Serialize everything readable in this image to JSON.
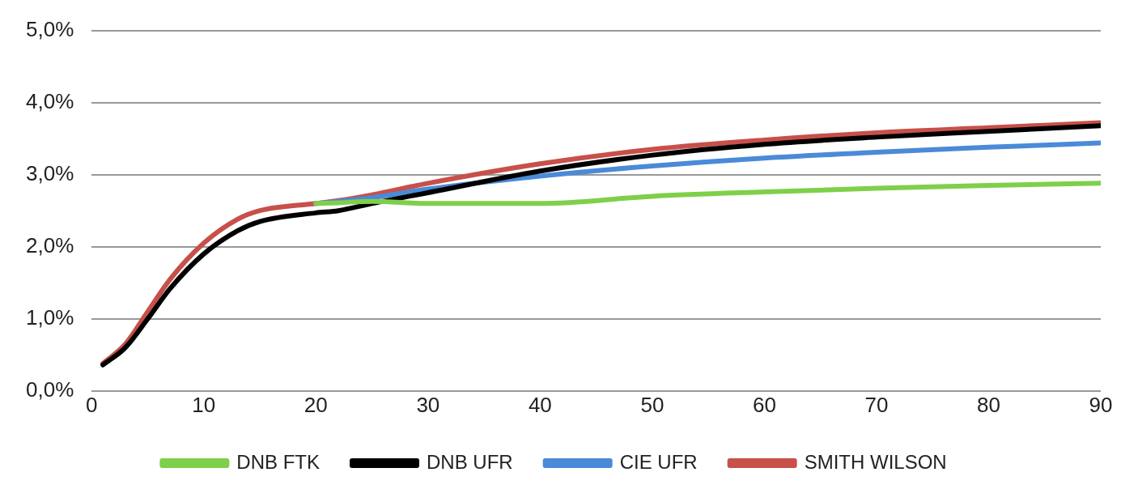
{
  "chart_data": {
    "type": "line",
    "x": [
      1,
      3,
      5,
      7,
      10,
      13,
      15,
      20,
      22,
      25,
      30,
      40,
      50,
      60,
      70,
      80,
      90
    ],
    "series": [
      {
        "name": "DNB FTK",
        "color": "#7ed04a",
        "values": [
          null,
          null,
          null,
          null,
          null,
          null,
          null,
          2.6,
          2.61,
          2.63,
          2.6,
          2.6,
          2.7,
          2.76,
          2.81,
          2.85,
          2.88
        ]
      },
      {
        "name": "DNB UFR",
        "color": "#000000",
        "values": [
          0.36,
          0.6,
          1.0,
          1.42,
          1.9,
          2.22,
          2.35,
          2.47,
          2.5,
          2.6,
          2.75,
          3.05,
          3.27,
          3.42,
          3.52,
          3.6,
          3.68
        ]
      },
      {
        "name": "CIE UFR",
        "color": "#4a8ad8",
        "values": [
          null,
          null,
          null,
          null,
          null,
          null,
          null,
          2.6,
          2.63,
          2.68,
          2.8,
          2.98,
          3.12,
          3.23,
          3.31,
          3.38,
          3.44
        ]
      },
      {
        "name": "SMITH WILSON",
        "color": "#c8504a",
        "values": [
          0.38,
          0.65,
          1.1,
          1.55,
          2.05,
          2.38,
          2.5,
          2.6,
          2.64,
          2.72,
          2.88,
          3.15,
          3.35,
          3.48,
          3.58,
          3.65,
          3.72
        ]
      }
    ],
    "xlim": [
      0,
      90
    ],
    "xticks": [
      0,
      10,
      20,
      30,
      40,
      50,
      60,
      70,
      80,
      90
    ],
    "ylim": [
      0,
      5
    ],
    "yticks": [
      {
        "value": 0,
        "label": "0,0%"
      },
      {
        "value": 1,
        "label": "1,0%"
      },
      {
        "value": 2,
        "label": "2,0%"
      },
      {
        "value": 3,
        "label": "3,0%"
      },
      {
        "value": 4,
        "label": "4,0%"
      },
      {
        "value": 5,
        "label": "5,0%"
      }
    ],
    "grid": "y",
    "legend": "bottom",
    "marker": "none",
    "line_style": "solid"
  }
}
